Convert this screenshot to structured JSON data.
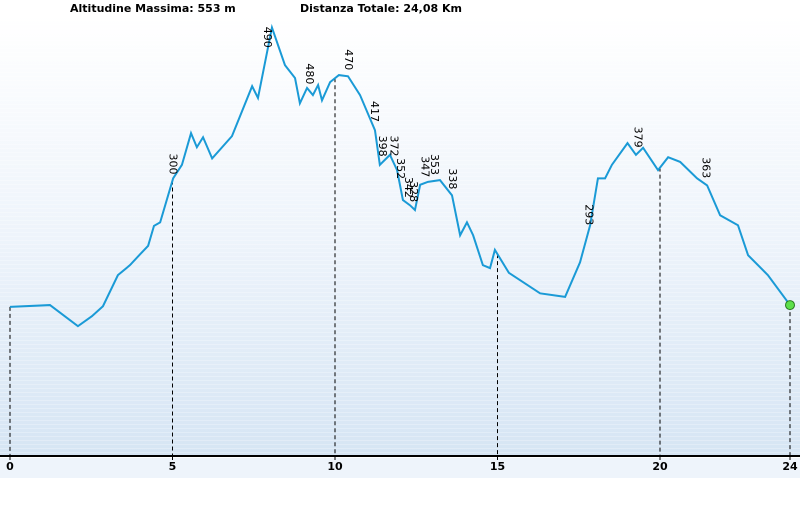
{
  "header": {
    "max_altitude": "Altitudine Massima: 553 m",
    "total_distance": "Distanza Totale: 24,08 Km"
  },
  "chart_data": {
    "type": "line",
    "x": [
      0,
      1.23,
      2.09,
      2.52,
      2.86,
      3.32,
      3.69,
      4.06,
      4.25,
      4.43,
      4.62,
      5.02,
      5.29,
      5.57,
      5.75,
      5.94,
      6.22,
      6.83,
      7.45,
      7.63,
      8.06,
      8.46,
      8.77,
      8.92,
      9.14,
      9.32,
      9.48,
      9.6,
      9.85,
      10.12,
      10.4,
      10.77,
      11.23,
      11.38,
      11.69,
      11.91,
      12.09,
      12.31,
      12.46,
      12.62,
      12.86,
      13.23,
      13.6,
      13.85,
      14.06,
      14.25,
      14.55,
      14.77,
      14.92,
      15.35,
      16.31,
      17.08,
      17.54,
      17.85,
      18.09,
      18.31,
      18.52,
      19.0,
      19.26,
      19.48,
      19.94,
      20.25,
      20.62,
      21.14,
      21.45,
      21.85,
      22.4,
      22.71,
      23.32,
      24.0
    ],
    "series": [
      {
        "color": "#1a9ad6",
        "values": [
          77,
          80,
          44,
          61,
          78,
          131,
          148,
          170,
          181,
          215,
          221,
          296,
          319,
          373,
          349,
          366,
          330,
          368,
          453,
          433,
          553,
          489,
          467,
          424,
          450,
          438,
          455,
          429,
          460,
          472,
          470,
          438,
          378,
          319,
          336,
          310,
          259,
          250,
          242,
          285,
          290,
          293,
          267,
          199,
          221,
          199,
          148,
          143,
          174,
          135,
          100,
          94,
          153,
          216,
          296,
          296,
          319,
          356,
          336,
          348,
          310,
          332,
          324,
          296,
          284,
          233,
          216,
          165,
          131,
          80
        ]
      }
    ],
    "labels": [
      {
        "x": 5.0,
        "value": 300
      },
      {
        "x": 7.9,
        "value": 490
      },
      {
        "x": 9.2,
        "value": 480
      },
      {
        "x": 10.4,
        "value": 470
      },
      {
        "x": 11.2,
        "value": 417
      },
      {
        "x": 11.45,
        "value": 398
      },
      {
        "x": 11.8,
        "value": 372
      },
      {
        "x": 12.0,
        "value": 352
      },
      {
        "x": 12.25,
        "value": 342
      },
      {
        "x": 12.4,
        "value": 328
      },
      {
        "x": 12.75,
        "value": 347
      },
      {
        "x": 13.05,
        "value": 353
      },
      {
        "x": 13.6,
        "value": 338
      },
      {
        "x": 17.8,
        "value": 293
      },
      {
        "x": 19.3,
        "value": 379
      },
      {
        "x": 21.4,
        "value": 363
      }
    ],
    "xlim": [
      0,
      24
    ],
    "xticks": [
      0,
      5,
      10,
      15,
      20,
      24
    ],
    "ylim": [
      0,
      600
    ]
  }
}
